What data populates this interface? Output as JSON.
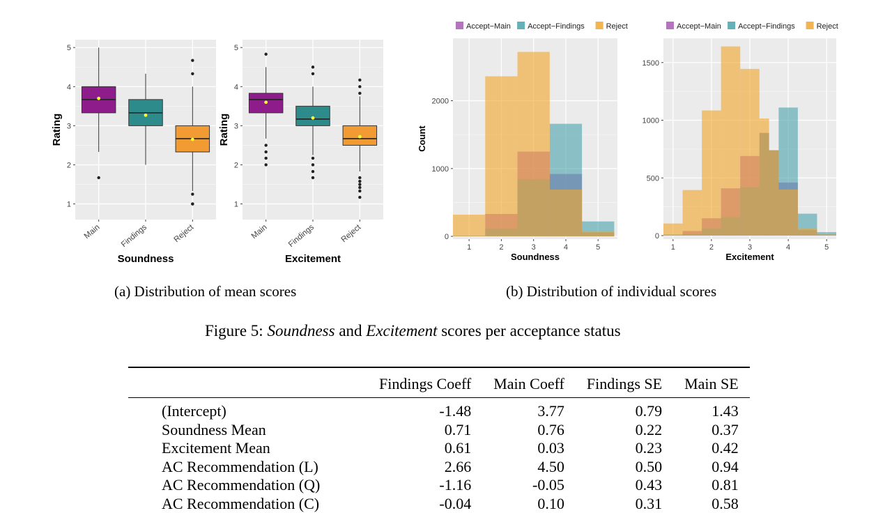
{
  "figure": {
    "caption_label": "Figure 5:",
    "caption_term1": "Soundness",
    "caption_and": "and",
    "caption_term2": "Excitement",
    "caption_rest": "scores per acceptance status",
    "subcaption_a": "(a) Distribution of mean scores",
    "subcaption_b": "(b) Distribution of individual scores"
  },
  "chart_data": [
    {
      "type": "box",
      "title": "",
      "xlabel": "Soundness",
      "ylabel": "Rating",
      "ylim": [
        0.6,
        5.2
      ],
      "yticks": [
        "1",
        "2",
        "3",
        "4",
        "5"
      ],
      "categories": [
        "Main",
        "Findings",
        "Reject"
      ],
      "colors": [
        "#8e1c8a",
        "#2e8b8c",
        "#f39b33"
      ],
      "mean_marker_color": "#ffff33",
      "boxes": [
        {
          "whisker_low": 2.33,
          "q1": 3.33,
          "median": 3.67,
          "q3": 4.0,
          "whisker_high": 5.0,
          "mean": 3.7,
          "outliers": [
            1.67
          ]
        },
        {
          "whisker_low": 2.0,
          "q1": 3.0,
          "median": 3.33,
          "q3": 3.67,
          "whisker_high": 4.33,
          "mean": 3.27,
          "outliers": []
        },
        {
          "whisker_low": 1.33,
          "q1": 2.33,
          "median": 2.67,
          "q3": 3.0,
          "whisker_high": 4.0,
          "mean": 2.65,
          "outliers": [
            4.67,
            4.33,
            1.25,
            1.0,
            1.0
          ]
        }
      ]
    },
    {
      "type": "box",
      "title": "",
      "xlabel": "Excitement",
      "ylabel": "Rating",
      "ylim": [
        0.6,
        5.2
      ],
      "yticks": [
        "1",
        "2",
        "3",
        "4",
        "5"
      ],
      "categories": [
        "Main",
        "Findings",
        "Reject"
      ],
      "colors": [
        "#8e1c8a",
        "#2e8b8c",
        "#f39b33"
      ],
      "mean_marker_color": "#ffff33",
      "boxes": [
        {
          "whisker_low": 2.67,
          "q1": 3.33,
          "median": 3.67,
          "q3": 3.83,
          "whisker_high": 4.5,
          "mean": 3.6,
          "outliers": [
            4.83,
            2.5,
            2.33,
            2.17,
            2.0
          ]
        },
        {
          "whisker_low": 2.25,
          "q1": 3.0,
          "median": 3.17,
          "q3": 3.5,
          "whisker_high": 4.0,
          "mean": 3.2,
          "outliers": [
            4.5,
            4.33,
            2.17,
            2.0,
            1.83,
            1.67
          ]
        },
        {
          "whisker_low": 1.83,
          "q1": 2.5,
          "median": 2.67,
          "q3": 3.0,
          "whisker_high": 3.75,
          "mean": 2.72,
          "outliers": [
            4.17,
            4.0,
            3.83,
            1.67,
            1.58,
            1.5,
            1.42,
            1.33,
            1.17
          ]
        }
      ]
    },
    {
      "type": "histogram",
      "title": "",
      "xlabel": "Soundness",
      "ylabel": "Count",
      "xlim": [
        0.5,
        5.6
      ],
      "ylim": [
        -40,
        2920
      ],
      "xticks": [
        "1",
        "2",
        "3",
        "4",
        "5"
      ],
      "yticks": [
        0,
        1000,
        2000
      ],
      "legend": [
        "Accept−Main",
        "Accept−Findings",
        "Reject"
      ],
      "legend_position": "top",
      "bin_edges": [
        0.5,
        1.5,
        2.5,
        3.5,
        4.5,
        5.5
      ],
      "series": [
        {
          "name": "Accept-Main",
          "color": "#a85bb5",
          "values": [
            5,
            330,
            1250,
            920,
            60
          ]
        },
        {
          "name": "Accept-Findings",
          "color": "#4aa3ab",
          "values": [
            10,
            110,
            840,
            1660,
            220
          ]
        },
        {
          "name": "Reject",
          "color": "#f0a830",
          "values": [
            320,
            2360,
            2720,
            690,
            70
          ]
        }
      ]
    },
    {
      "type": "histogram",
      "title": "",
      "xlabel": "Excitement",
      "ylabel": "",
      "xlim": [
        0.75,
        5.25
      ],
      "ylim": [
        -30,
        1710
      ],
      "xticks": [
        "1",
        "2",
        "3",
        "4",
        "5"
      ],
      "yticks": [
        0,
        500,
        1000,
        1500
      ],
      "legend": [
        "Accept−Main",
        "Accept−Findings",
        "Reject"
      ],
      "legend_position": "top",
      "bin_edges": [
        0.75,
        1.25,
        1.75,
        2.25,
        2.75,
        3.25,
        3.5,
        3.75,
        4.25,
        4.75,
        5.25
      ],
      "series": [
        {
          "name": "Accept-Main",
          "color": "#a85bb5",
          "values": [
            5,
            40,
            150,
            410,
            690,
            890,
            740,
            460,
            50,
            10
          ]
        },
        {
          "name": "Accept-Findings",
          "color": "#4aa3ab",
          "values": [
            10,
            15,
            60,
            160,
            420,
            890,
            740,
            1110,
            190,
            30
          ]
        },
        {
          "name": "Reject",
          "color": "#f0a830",
          "values": [
            105,
            395,
            1085,
            1640,
            1445,
            1015,
            740,
            400,
            60,
            10
          ]
        }
      ]
    }
  ],
  "table": {
    "headers": [
      "",
      "Findings Coeff",
      "Main Coeff",
      "Findings SE",
      "Main SE"
    ],
    "rows": [
      {
        "label": "(Intercept)",
        "cells": [
          "-1.48",
          "3.77",
          "0.79",
          "1.43"
        ]
      },
      {
        "label": "Soundness Mean",
        "cells": [
          "0.71",
          "0.76",
          "0.22",
          "0.37"
        ]
      },
      {
        "label": "Excitement Mean",
        "cells": [
          "0.61",
          "0.03",
          "0.23",
          "0.42"
        ]
      },
      {
        "label": "AC Recommendation (L)",
        "cells": [
          "2.66",
          "4.50",
          "0.50",
          "0.94"
        ]
      },
      {
        "label": "AC Recommendation (Q)",
        "cells": [
          "-1.16",
          "-0.05",
          "0.43",
          "0.81"
        ]
      },
      {
        "label": "AC Recommendation (C)",
        "cells": [
          "-0.04",
          "0.10",
          "0.31",
          "0.58"
        ]
      }
    ]
  }
}
